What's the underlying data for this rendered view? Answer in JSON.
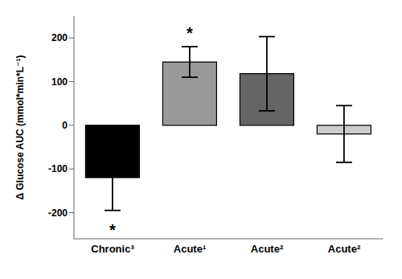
{
  "chart_data": {
    "type": "bar",
    "categories": [
      "Chronic³",
      "Acute¹",
      "Acute²",
      "Acute²"
    ],
    "values": [
      -120,
      145,
      118,
      -20
    ],
    "errors": [
      75,
      35,
      85,
      65
    ],
    "colors": [
      "#000000",
      "#999999",
      "#656565",
      "#cccccc"
    ],
    "ylabel": "Δ Glucose AUC  (mmol*min*L⁻¹)",
    "ylim": [
      -260,
      250
    ],
    "yticks": [
      -200,
      -100,
      0,
      100,
      200
    ],
    "grid": false,
    "annotations": [
      {
        "text": "*",
        "x": "Chronic³",
        "y": -223
      },
      {
        "text": "*",
        "x": "Acute¹",
        "y": 195
      }
    ]
  }
}
